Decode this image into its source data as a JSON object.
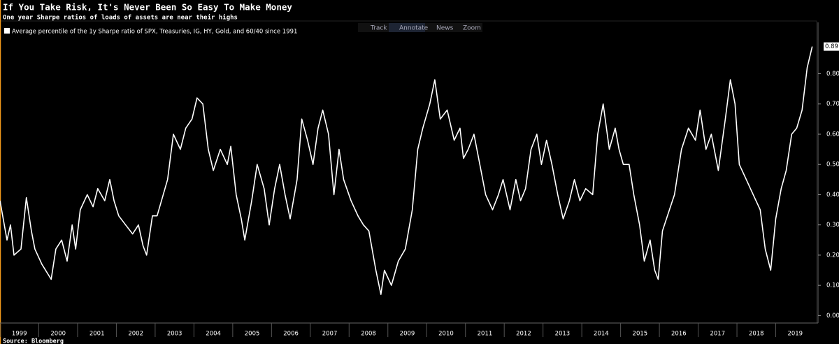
{
  "toolbar": [
    "Track",
    "Annotate",
    "News",
    "Zoom"
  ],
  "chart_data": {
    "type": "line",
    "title": "If You Take Risk, It's Never Been So Easy To Make Money",
    "subtitle": "One year Sharpe ratios of loads of assets are near their highs",
    "source": "Source: Bloomberg",
    "x": [
      1999.0,
      1999.18,
      1999.27,
      1999.36,
      1999.54,
      1999.68,
      1999.81,
      1999.9,
      2000.08,
      2000.32,
      2000.44,
      2000.59,
      2000.73,
      2000.86,
      2000.95,
      2001.07,
      2001.25,
      2001.4,
      2001.52,
      2001.7,
      2001.83,
      2001.94,
      2002.06,
      2002.24,
      2002.42,
      2002.57,
      2002.69,
      2002.78,
      2002.93,
      2003.05,
      2003.32,
      2003.47,
      2003.65,
      2003.79,
      2003.95,
      2004.08,
      2004.23,
      2004.37,
      2004.5,
      2004.68,
      2004.86,
      2004.95,
      2005.09,
      2005.22,
      2005.31,
      2005.49,
      2005.63,
      2005.81,
      2005.94,
      2006.08,
      2006.21,
      2006.35,
      2006.48,
      2006.66,
      2006.78,
      2006.93,
      2007.07,
      2007.2,
      2007.32,
      2007.47,
      2007.61,
      2007.74,
      2007.86,
      2008.05,
      2008.23,
      2008.37,
      2008.51,
      2008.69,
      2008.82,
      2008.91,
      2009.09,
      2009.27,
      2009.45,
      2009.63,
      2009.77,
      2009.9,
      2010.08,
      2010.21,
      2010.35,
      2010.53,
      2010.71,
      2010.86,
      2010.95,
      2011.07,
      2011.22,
      2011.34,
      2011.52,
      2011.7,
      2011.85,
      2011.97,
      2012.15,
      2012.3,
      2012.42,
      2012.55,
      2012.69,
      2012.84,
      2012.96,
      2013.09,
      2013.23,
      2013.38,
      2013.52,
      2013.68,
      2013.81,
      2013.95,
      2014.1,
      2014.28,
      2014.41,
      2014.55,
      2014.71,
      2014.86,
      2014.96,
      2015.07,
      2015.22,
      2015.34,
      2015.49,
      2015.61,
      2015.76,
      2015.88,
      2015.97,
      2016.08,
      2016.26,
      2016.39,
      2016.57,
      2016.75,
      2016.93,
      2017.05,
      2017.2,
      2017.34,
      2017.52,
      2017.7,
      2017.83,
      2017.95,
      2018.06,
      2018.24,
      2018.42,
      2018.6,
      2018.73,
      2018.87,
      2019.0,
      2019.14,
      2019.27,
      2019.41,
      2019.54,
      2019.68,
      2019.81,
      2019.94
    ],
    "series": [
      {
        "name": "Average percentile of the 1y Sharpe ratio of SPX, Treasuries, IG, HY, Gold, and 60/40 since 1991",
        "color": "#ffffff",
        "values": [
          0.38,
          0.25,
          0.3,
          0.2,
          0.22,
          0.39,
          0.28,
          0.22,
          0.17,
          0.12,
          0.22,
          0.25,
          0.18,
          0.3,
          0.22,
          0.35,
          0.4,
          0.36,
          0.42,
          0.38,
          0.45,
          0.38,
          0.33,
          0.3,
          0.27,
          0.3,
          0.23,
          0.2,
          0.33,
          0.33,
          0.45,
          0.6,
          0.55,
          0.62,
          0.65,
          0.72,
          0.7,
          0.55,
          0.48,
          0.55,
          0.5,
          0.56,
          0.4,
          0.32,
          0.25,
          0.38,
          0.5,
          0.42,
          0.3,
          0.42,
          0.5,
          0.4,
          0.32,
          0.45,
          0.65,
          0.58,
          0.5,
          0.62,
          0.68,
          0.6,
          0.4,
          0.55,
          0.45,
          0.38,
          0.33,
          0.3,
          0.28,
          0.15,
          0.07,
          0.15,
          0.1,
          0.18,
          0.22,
          0.35,
          0.55,
          0.62,
          0.7,
          0.78,
          0.65,
          0.68,
          0.58,
          0.62,
          0.52,
          0.55,
          0.6,
          0.52,
          0.4,
          0.35,
          0.4,
          0.45,
          0.35,
          0.45,
          0.38,
          0.42,
          0.55,
          0.6,
          0.5,
          0.58,
          0.5,
          0.4,
          0.32,
          0.38,
          0.45,
          0.38,
          0.42,
          0.4,
          0.6,
          0.7,
          0.55,
          0.62,
          0.55,
          0.5,
          0.5,
          0.4,
          0.3,
          0.18,
          0.25,
          0.15,
          0.12,
          0.28,
          0.35,
          0.4,
          0.55,
          0.62,
          0.58,
          0.68,
          0.55,
          0.6,
          0.48,
          0.65,
          0.78,
          0.7,
          0.5,
          0.45,
          0.4,
          0.35,
          0.22,
          0.15,
          0.32,
          0.42,
          0.48,
          0.6,
          0.62,
          0.68,
          0.82,
          0.89
        ]
      }
    ],
    "xlim": [
      1999,
      2020
    ],
    "xticks": [
      1999,
      2000,
      2001,
      2002,
      2003,
      2004,
      2005,
      2006,
      2007,
      2008,
      2009,
      2010,
      2011,
      2012,
      2013,
      2014,
      2015,
      2016,
      2017,
      2018,
      2019
    ],
    "ylim": [
      -0.02,
      0.97
    ],
    "yticks": [
      {
        "value": 0,
        "label": "0.00"
      },
      {
        "value": 0.1,
        "label": "0.10"
      },
      {
        "value": 0.2,
        "label": "0.20"
      },
      {
        "value": 0.3,
        "label": "0.30"
      },
      {
        "value": 0.4,
        "label": "0.40"
      },
      {
        "value": 0.5,
        "label": "0.50"
      },
      {
        "value": 0.6,
        "label": "0.60"
      },
      {
        "value": 0.7,
        "label": "0.70"
      },
      {
        "value": 0.8,
        "label": "0.80"
      }
    ],
    "grid": false
  }
}
